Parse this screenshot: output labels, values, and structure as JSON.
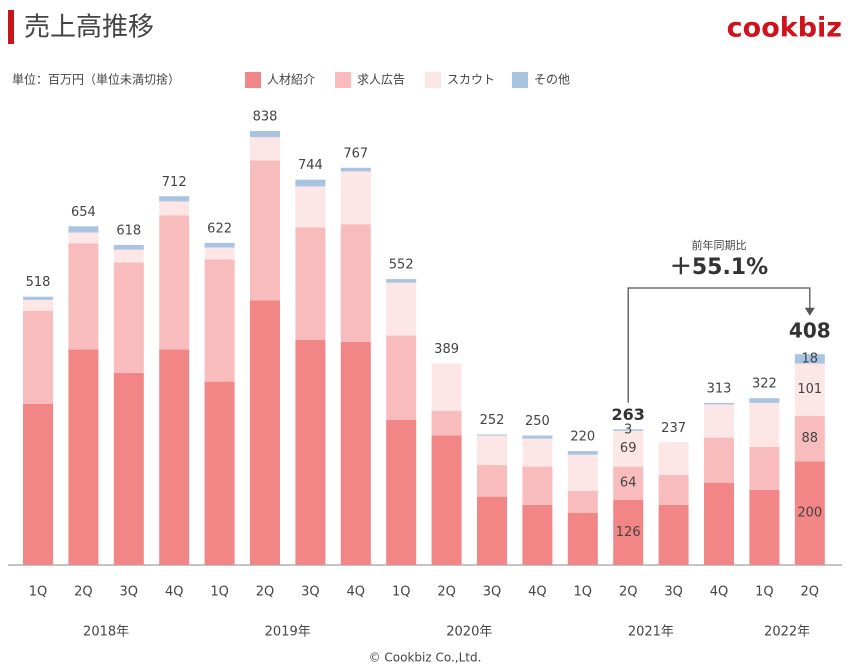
{
  "chart_data": {
    "type": "stacked_bar",
    "title": "売上高推移",
    "logo": "cookbiz",
    "unit_note": "単位：百万円（単位未満切捨）",
    "footer": "© Cookbiz Co.,Ltd.",
    "groups": [
      {
        "label": "2018年",
        "categories": [
          "1Q",
          "2Q",
          "3Q",
          "4Q"
        ]
      },
      {
        "label": "2019年",
        "categories": [
          "1Q",
          "2Q",
          "3Q",
          "4Q"
        ]
      },
      {
        "label": "2020年",
        "categories": [
          "1Q",
          "2Q",
          "3Q",
          "4Q"
        ]
      },
      {
        "label": "2021年",
        "categories": [
          "1Q",
          "2Q",
          "3Q",
          "4Q"
        ]
      },
      {
        "label": "2022年",
        "categories": [
          "1Q",
          "2Q"
        ]
      }
    ],
    "series": [
      {
        "name": "人材紹介",
        "color": "#f28585",
        "values": [
          311,
          416,
          371,
          416,
          354,
          511,
          435,
          431,
          280,
          250,
          132,
          116,
          101,
          126,
          116,
          159,
          145,
          200
        ]
      },
      {
        "name": "求人広告",
        "color": "#f9bcbc",
        "values": [
          180,
          205,
          213,
          259,
          236,
          270,
          217,
          227,
          163,
          48,
          61,
          74,
          42,
          64,
          58,
          87,
          83,
          88
        ]
      },
      {
        "name": "スカウト",
        "color": "#fde6e6",
        "values": [
          21,
          21,
          25,
          27,
          23,
          45,
          79,
          102,
          102,
          91,
          57,
          54,
          70,
          69,
          63,
          64,
          85,
          101
        ]
      },
      {
        "name": "その他",
        "color": "#a8c4e0",
        "values": [
          6,
          12,
          9,
          10,
          9,
          12,
          13,
          7,
          7,
          0,
          2,
          6,
          7,
          3,
          0,
          3,
          9,
          18
        ]
      }
    ],
    "totals": [
      518,
      654,
      618,
      712,
      622,
      838,
      744,
      767,
      552,
      389,
      252,
      250,
      220,
      263,
      237,
      313,
      322,
      408
    ],
    "annotated": [
      13,
      17
    ],
    "annotation": {
      "label": "前年同期比",
      "value_label": "＋55.1%",
      "from": 13,
      "to": 17
    }
  }
}
